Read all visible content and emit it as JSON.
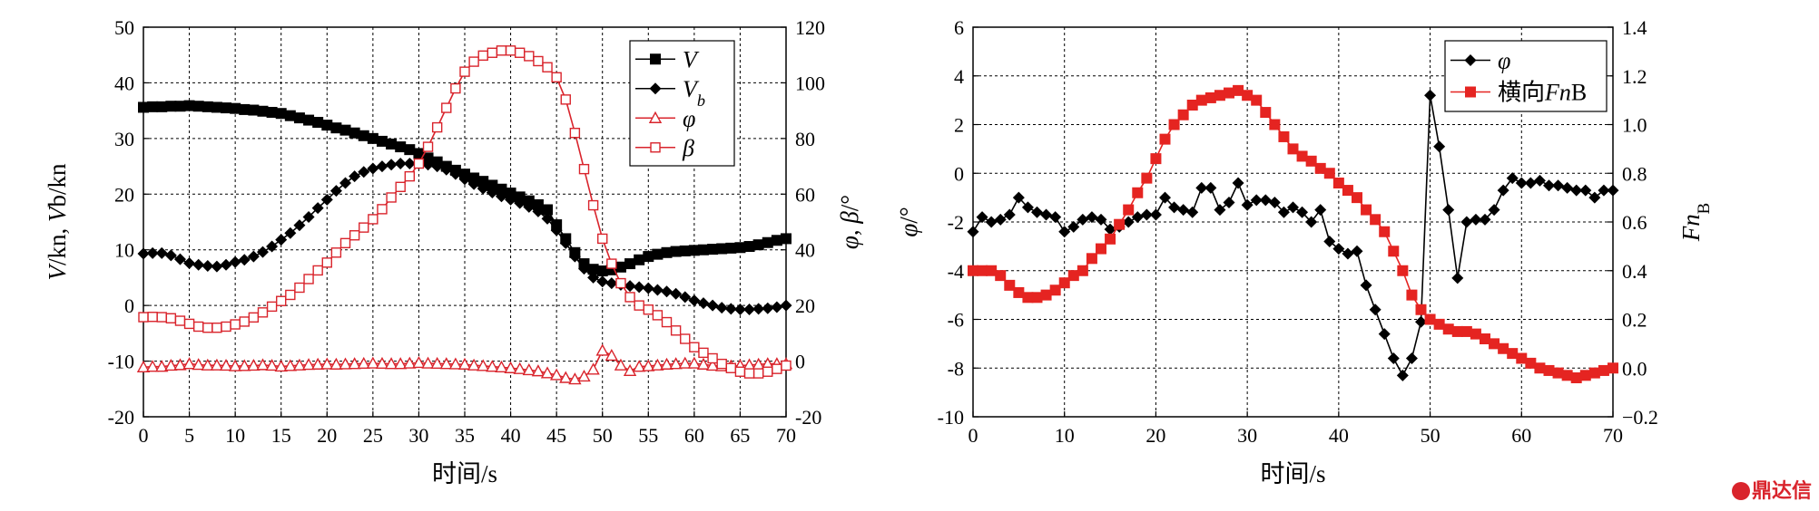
{
  "watermark": "鼎达信",
  "chart_data": [
    {
      "type": "line",
      "xlabel": "时间/s",
      "ylabel_left": "V/kn, V_b/kn",
      "ylabel_right": "φ, β/°",
      "xlim": [
        0,
        70
      ],
      "xticks": [
        0,
        5,
        10,
        15,
        20,
        25,
        30,
        35,
        40,
        45,
        50,
        55,
        60,
        65,
        70
      ],
      "ylim_left": [
        -20,
        50
      ],
      "yticks_left": [
        -20,
        -10,
        0,
        10,
        20,
        30,
        40,
        50
      ],
      "ylim_right": [
        -20,
        120
      ],
      "yticks_right": [
        -20,
        0,
        20,
        40,
        60,
        80,
        100,
        120
      ],
      "grid": true,
      "legend_position": "top-right",
      "series": [
        {
          "name": "V",
          "axis": "left",
          "color": "#000000",
          "marker": "square-filled",
          "x": [
            0,
            1,
            2,
            3,
            4,
            5,
            6,
            7,
            8,
            9,
            10,
            11,
            12,
            13,
            14,
            15,
            16,
            17,
            18,
            19,
            20,
            21,
            22,
            23,
            24,
            25,
            26,
            27,
            28,
            29,
            30,
            31,
            32,
            33,
            34,
            35,
            36,
            37,
            38,
            39,
            40,
            41,
            42,
            43,
            44,
            45,
            46,
            47,
            48,
            49,
            50,
            51,
            52,
            53,
            54,
            55,
            56,
            57,
            58,
            59,
            60,
            61,
            62,
            63,
            64,
            65,
            66,
            67,
            68,
            69,
            70
          ],
          "y": [
            35.6,
            35.7,
            35.7,
            35.8,
            35.8,
            35.9,
            35.8,
            35.7,
            35.6,
            35.5,
            35.4,
            35.2,
            35.1,
            34.9,
            34.7,
            34.5,
            34.1,
            33.7,
            33.3,
            32.9,
            32.4,
            31.9,
            31.5,
            31.0,
            30.5,
            30.0,
            29.5,
            29.0,
            28.5,
            28.0,
            27.3,
            26.5,
            25.8,
            25.0,
            24.3,
            23.6,
            22.9,
            22.3,
            21.6,
            20.9,
            20.2,
            19.5,
            18.8,
            18.1,
            17.2,
            14.5,
            12.0,
            9.5,
            7.5,
            6.5,
            6.2,
            6.4,
            6.9,
            7.5,
            8.2,
            8.8,
            9.2,
            9.5,
            9.7,
            9.8,
            9.9,
            10.0,
            10.1,
            10.2,
            10.3,
            10.4,
            10.6,
            10.9,
            11.3,
            11.7,
            12.0
          ]
        },
        {
          "name": "V_b",
          "axis": "left",
          "color": "#000000",
          "marker": "diamond-filled",
          "x": [
            0,
            1,
            2,
            3,
            4,
            5,
            6,
            7,
            8,
            9,
            10,
            11,
            12,
            13,
            14,
            15,
            16,
            17,
            18,
            19,
            20,
            21,
            22,
            23,
            24,
            25,
            26,
            27,
            28,
            29,
            30,
            31,
            32,
            33,
            34,
            35,
            36,
            37,
            38,
            39,
            40,
            41,
            42,
            43,
            44,
            45,
            46,
            47,
            48,
            49,
            50,
            51,
            52,
            53,
            54,
            55,
            56,
            57,
            58,
            59,
            60,
            61,
            62,
            63,
            64,
            65,
            66,
            67,
            68,
            69,
            70
          ],
          "y": [
            9.3,
            9.4,
            9.4,
            9.0,
            8.3,
            7.6,
            7.3,
            7.1,
            7.0,
            7.3,
            7.8,
            8.2,
            8.8,
            9.6,
            10.6,
            11.8,
            13.0,
            14.4,
            15.9,
            17.5,
            19.0,
            20.6,
            22.0,
            23.2,
            24.0,
            24.6,
            25.0,
            25.3,
            25.5,
            25.5,
            25.5,
            25.3,
            25.0,
            24.4,
            23.6,
            22.7,
            21.8,
            21.0,
            20.3,
            19.6,
            19.0,
            18.4,
            17.7,
            16.9,
            15.6,
            13.5,
            11.2,
            8.8,
            6.6,
            5.0,
            4.3,
            4.0,
            3.7,
            3.5,
            3.3,
            3.1,
            2.8,
            2.5,
            2.1,
            1.5,
            0.9,
            0.4,
            0.0,
            -0.4,
            -0.6,
            -0.7,
            -0.7,
            -0.6,
            -0.5,
            -0.3,
            0.0
          ]
        },
        {
          "name": "φ",
          "axis": "right",
          "color": "#d9242c",
          "marker": "triangle-open",
          "x": [
            0,
            1,
            2,
            3,
            4,
            5,
            6,
            7,
            8,
            9,
            10,
            11,
            12,
            13,
            14,
            15,
            16,
            17,
            18,
            19,
            20,
            21,
            22,
            23,
            24,
            25,
            26,
            27,
            28,
            29,
            30,
            31,
            32,
            33,
            34,
            35,
            36,
            37,
            38,
            39,
            40,
            41,
            42,
            43,
            44,
            45,
            46,
            47,
            48,
            49,
            50,
            51,
            52,
            53,
            54,
            55,
            56,
            57,
            58,
            59,
            60,
            61,
            62,
            63,
            64,
            65,
            66,
            67,
            68,
            69,
            70
          ],
          "y": [
            -2.2,
            -2.0,
            -2.0,
            -1.6,
            -1.4,
            -1.0,
            -1.3,
            -1.5,
            -1.5,
            -1.6,
            -1.8,
            -1.7,
            -1.6,
            -1.4,
            -1.6,
            -1.9,
            -1.7,
            -1.5,
            -1.3,
            -1.2,
            -1.1,
            -1.2,
            -1.1,
            -1.0,
            -0.9,
            -0.8,
            -0.9,
            -1.0,
            -1.0,
            -0.8,
            -0.6,
            -0.8,
            -0.9,
            -1.0,
            -1.1,
            -1.2,
            -1.5,
            -1.7,
            -2.0,
            -2.2,
            -2.5,
            -2.8,
            -3.2,
            -3.6,
            -4.3,
            -5.0,
            -6.0,
            -6.5,
            -5.5,
            -3.0,
            3.8,
            2.0,
            -1.5,
            -3.5,
            -2.0,
            -1.8,
            -1.5,
            -1.2,
            -1.0,
            -0.8,
            -0.8,
            -1.2,
            -1.6,
            -1.8,
            -1.8,
            -1.6,
            -1.4,
            -1.2,
            -1.0,
            -1.0,
            -1.0
          ]
        },
        {
          "name": "β",
          "axis": "right",
          "color": "#d9242c",
          "marker": "square-open",
          "x": [
            0,
            1,
            2,
            3,
            4,
            5,
            6,
            7,
            8,
            9,
            10,
            11,
            12,
            13,
            14,
            15,
            16,
            17,
            18,
            19,
            20,
            21,
            22,
            23,
            24,
            25,
            26,
            27,
            28,
            29,
            30,
            31,
            32,
            33,
            34,
            35,
            36,
            37,
            38,
            39,
            40,
            41,
            42,
            43,
            44,
            45,
            46,
            47,
            48,
            49,
            50,
            51,
            52,
            53,
            54,
            55,
            56,
            57,
            58,
            59,
            60,
            61,
            62,
            63,
            64,
            65,
            66,
            67,
            68,
            69,
            70
          ],
          "y": [
            15.8,
            15.9,
            15.8,
            15.4,
            14.5,
            13.4,
            12.4,
            12.0,
            12.0,
            12.4,
            13.2,
            14.2,
            15.7,
            17.5,
            19.6,
            21.6,
            23.8,
            26.4,
            29.5,
            32.6,
            35.4,
            39.0,
            42.4,
            45.2,
            48.0,
            51.0,
            54.6,
            58.8,
            62.6,
            66.4,
            71.0,
            77.0,
            84.0,
            91.0,
            98.0,
            104.0,
            107.6,
            109.8,
            110.8,
            111.6,
            111.6,
            110.8,
            109.6,
            107.8,
            105.6,
            102.0,
            94.0,
            82.0,
            69.0,
            56.0,
            44.0,
            35.0,
            28.0,
            23.0,
            20.0,
            18.5,
            16.5,
            14.0,
            11.0,
            8.0,
            5.0,
            3.0,
            1.0,
            -1.0,
            -2.5,
            -3.8,
            -4.4,
            -4.4,
            -3.8,
            -2.8,
            -1.6
          ]
        }
      ]
    },
    {
      "type": "line",
      "xlabel": "时间/s",
      "ylabel_left": "φ/°",
      "ylabel_right": "Fn_B",
      "xlim": [
        0,
        70
      ],
      "xticks": [
        0,
        10,
        20,
        30,
        40,
        50,
        60,
        70
      ],
      "ylim_left": [
        -10,
        6
      ],
      "yticks_left": [
        -10,
        -8,
        -6,
        -4,
        -2,
        0,
        2,
        4,
        6
      ],
      "ylim_right": [
        -0.2,
        1.4
      ],
      "yticks_right": [
        "−0.2",
        "0.0",
        "0.2",
        "0.4",
        "0.6",
        "0.8",
        "1.0",
        "1.2",
        "1.4"
      ],
      "grid": true,
      "legend_position": "top-right",
      "series": [
        {
          "name": "φ",
          "axis": "left",
          "color": "#000000",
          "marker": "diamond-filled",
          "x": [
            0,
            1,
            2,
            3,
            4,
            5,
            6,
            7,
            8,
            9,
            10,
            11,
            12,
            13,
            14,
            15,
            16,
            17,
            18,
            19,
            20,
            21,
            22,
            23,
            24,
            25,
            26,
            27,
            28,
            29,
            30,
            31,
            32,
            33,
            34,
            35,
            36,
            37,
            38,
            39,
            40,
            41,
            42,
            43,
            44,
            45,
            46,
            47,
            48,
            49,
            50,
            51,
            52,
            53,
            54,
            55,
            56,
            57,
            58,
            59,
            60,
            61,
            62,
            63,
            64,
            65,
            66,
            67,
            68,
            69,
            70
          ],
          "y": [
            -2.4,
            -1.8,
            -2.0,
            -1.9,
            -1.7,
            -1.0,
            -1.4,
            -1.6,
            -1.7,
            -1.8,
            -2.4,
            -2.2,
            -1.9,
            -1.8,
            -1.9,
            -2.3,
            -2.2,
            -2.0,
            -1.8,
            -1.7,
            -1.7,
            -1.0,
            -1.4,
            -1.5,
            -1.6,
            -0.6,
            -0.6,
            -1.5,
            -1.2,
            -0.4,
            -1.3,
            -1.1,
            -1.1,
            -1.2,
            -1.6,
            -1.4,
            -1.6,
            -2.0,
            -1.5,
            -2.8,
            -3.1,
            -3.3,
            -3.2,
            -4.6,
            -5.6,
            -6.6,
            -7.6,
            -8.3,
            -7.6,
            -6.1,
            3.2,
            1.1,
            -1.5,
            -4.3,
            -2.0,
            -1.9,
            -1.9,
            -1.5,
            -0.7,
            -0.2,
            -0.4,
            -0.4,
            -0.3,
            -0.5,
            -0.5,
            -0.6,
            -0.7,
            -0.7,
            -1.0,
            -0.7,
            -0.7
          ]
        },
        {
          "name": "横向Fn_B",
          "axis": "right",
          "color": "#e52421",
          "marker": "square-filled",
          "x": [
            0,
            1,
            2,
            3,
            4,
            5,
            6,
            7,
            8,
            9,
            10,
            11,
            12,
            13,
            14,
            15,
            16,
            17,
            18,
            19,
            20,
            21,
            22,
            23,
            24,
            25,
            26,
            27,
            28,
            29,
            30,
            31,
            32,
            33,
            34,
            35,
            36,
            37,
            38,
            39,
            40,
            41,
            42,
            43,
            44,
            45,
            46,
            47,
            48,
            49,
            50,
            51,
            52,
            53,
            54,
            55,
            56,
            57,
            58,
            59,
            60,
            61,
            62,
            63,
            64,
            65,
            66,
            67,
            68,
            69,
            70
          ],
          "y": [
            0.4,
            0.4,
            0.4,
            0.38,
            0.34,
            0.31,
            0.29,
            0.29,
            0.3,
            0.32,
            0.35,
            0.38,
            0.4,
            0.45,
            0.49,
            0.53,
            0.59,
            0.65,
            0.72,
            0.78,
            0.86,
            0.94,
            1.0,
            1.04,
            1.08,
            1.1,
            1.11,
            1.12,
            1.13,
            1.14,
            1.12,
            1.1,
            1.05,
            1.0,
            0.95,
            0.9,
            0.87,
            0.85,
            0.82,
            0.8,
            0.76,
            0.73,
            0.7,
            0.65,
            0.61,
            0.56,
            0.48,
            0.4,
            0.3,
            0.24,
            0.2,
            0.18,
            0.16,
            0.15,
            0.15,
            0.14,
            0.12,
            0.1,
            0.08,
            0.06,
            0.04,
            0.02,
            0.0,
            -0.01,
            -0.02,
            -0.03,
            -0.04,
            -0.03,
            -0.02,
            -0.01,
            0.0
          ]
        }
      ]
    }
  ]
}
